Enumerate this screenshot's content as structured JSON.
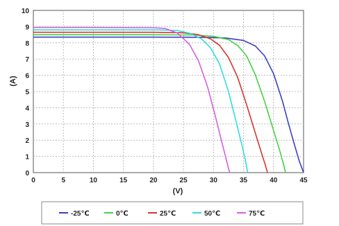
{
  "chart_data": {
    "type": "line",
    "xlabel": "(V)",
    "ylabel": "(A)",
    "xlim": [
      0,
      45
    ],
    "ylim": [
      0,
      10
    ],
    "x_ticks": [
      "0",
      "5",
      "10",
      "15",
      "20",
      "25",
      "30",
      "35",
      "40",
      "45"
    ],
    "y_ticks": [
      "0",
      "1",
      "2",
      "3",
      "4",
      "5",
      "6",
      "7",
      "8",
      "9",
      "10"
    ],
    "grid": true,
    "legend_position": "bottom",
    "series": [
      {
        "name": "-25℃",
        "color": "#3a3fc4",
        "x": [
          0,
          10,
          20,
          28,
          32,
          35,
          37,
          38.5,
          40,
          41.5,
          42.5,
          43.5,
          44.3,
          45
        ],
        "y": [
          8.35,
          8.35,
          8.35,
          8.34,
          8.3,
          8.15,
          7.8,
          7.2,
          6.1,
          4.4,
          3.0,
          1.7,
          0.7,
          0
        ]
      },
      {
        "name": "0℃",
        "color": "#44d144",
        "x": [
          0,
          10,
          20,
          27,
          30,
          32.5,
          34,
          35.5,
          37,
          38.5,
          40,
          41,
          41.6,
          42
        ],
        "y": [
          8.5,
          8.5,
          8.5,
          8.48,
          8.4,
          8.2,
          7.85,
          7.2,
          6.0,
          4.4,
          2.6,
          1.4,
          0.6,
          0
        ]
      },
      {
        "name": "25℃",
        "color": "#d8332c",
        "x": [
          0,
          10,
          20,
          25,
          27.5,
          29.5,
          31,
          32.5,
          34,
          35.5,
          37,
          38,
          38.6,
          39
        ],
        "y": [
          8.65,
          8.65,
          8.65,
          8.62,
          8.5,
          8.25,
          7.85,
          7.1,
          5.9,
          4.2,
          2.4,
          1.2,
          0.5,
          0
        ]
      },
      {
        "name": "50℃",
        "color": "#33dde0",
        "x": [
          0,
          10,
          20,
          24,
          26,
          28,
          29.5,
          31,
          32.5,
          33.8,
          34.8,
          35.3,
          35.7
        ],
        "y": [
          8.8,
          8.8,
          8.8,
          8.76,
          8.6,
          8.25,
          7.7,
          6.7,
          5.0,
          3.1,
          1.6,
          0.8,
          0
        ]
      },
      {
        "name": "75℃",
        "color": "#d65ce0",
        "x": [
          0,
          10,
          20,
          22,
          24,
          26,
          27.5,
          29,
          30.3,
          31.3,
          32,
          32.4,
          32.7
        ],
        "y": [
          8.95,
          8.95,
          8.93,
          8.88,
          8.6,
          7.9,
          6.9,
          5.3,
          3.5,
          2.0,
          1.0,
          0.4,
          0
        ]
      }
    ]
  }
}
